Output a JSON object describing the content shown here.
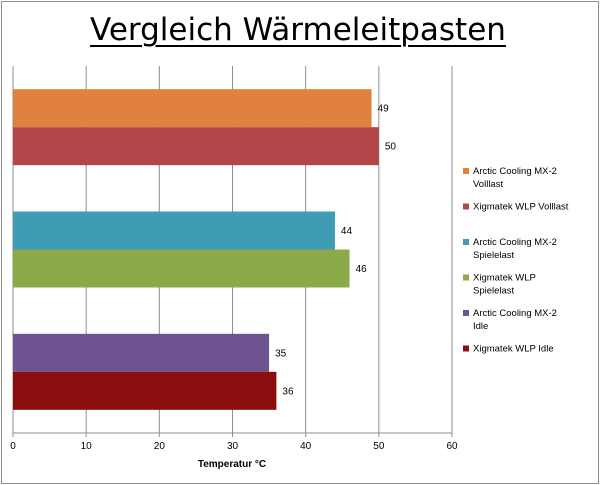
{
  "chart_data": {
    "type": "bar",
    "orientation": "horizontal",
    "title": "Vergleich Wärmeleitpasten",
    "xlabel": "Temperatur °C",
    "ylabel": "",
    "xlim": [
      0,
      60
    ],
    "xticks": [
      0,
      10,
      20,
      30,
      40,
      50,
      60
    ],
    "grid": true,
    "legend_position": "right",
    "series": [
      {
        "name": "Arctic Cooling MX-2 Volllast",
        "legend_lines": [
          "Arctic Cooling MX-2",
          "Volllast"
        ],
        "value": 49,
        "color": "#e0823d"
      },
      {
        "name": "Xigmatek WLP Volllast",
        "legend_lines": [
          "Xigmatek WLP Volllast"
        ],
        "value": 50,
        "color": "#b3464b"
      },
      {
        "name": "Arctic Cooling MX-2 Spielelast",
        "legend_lines": [
          "Arctic Cooling MX-2",
          "Spielelast"
        ],
        "value": 44,
        "color": "#3e9cb5"
      },
      {
        "name": "Xigmatek WLP Spielelast",
        "legend_lines": [
          "Xigmatek WLP",
          "Spielelast"
        ],
        "value": 46,
        "color": "#8caa4a"
      },
      {
        "name": "Arctic Cooling MX-2 Idle",
        "legend_lines": [
          "Arctic Cooling MX-2",
          "Idle"
        ],
        "value": 35,
        "color": "#6e5391"
      },
      {
        "name": "Xigmatek WLP Idle",
        "legend_lines": [
          "Xigmatek WLP Idle"
        ],
        "value": 36,
        "color": "#8b0d0d"
      }
    ]
  }
}
